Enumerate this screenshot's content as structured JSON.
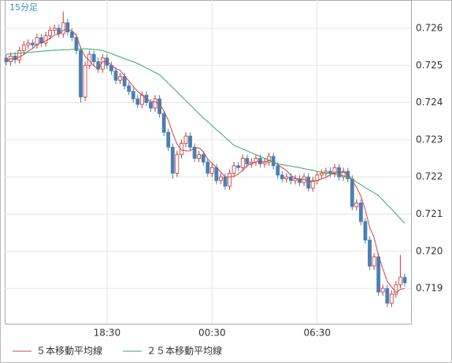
{
  "chart_data": {
    "type": "candlestick",
    "title": "15分足",
    "categories": [
      null,
      null,
      null,
      null,
      null,
      null,
      null,
      null,
      null,
      null,
      null,
      null,
      null,
      null,
      null,
      null,
      null,
      null,
      null,
      null,
      null,
      null,
      null,
      "18:30",
      null,
      null,
      null,
      null,
      null,
      null,
      null,
      null,
      null,
      null,
      null,
      null,
      null,
      null,
      null,
      null,
      null,
      null,
      null,
      null,
      null,
      null,
      null,
      "00:30",
      null,
      null,
      null,
      null,
      null,
      null,
      null,
      null,
      null,
      null,
      null,
      null,
      null,
      null,
      null,
      null,
      null,
      null,
      null,
      null,
      null,
      null,
      null,
      "06:30",
      null,
      null,
      null,
      null,
      null,
      null,
      null,
      null,
      null,
      null,
      null,
      null,
      null,
      null,
      null,
      null,
      null,
      null,
      null,
      null
    ],
    "open": [
      0.7252,
      0.7251,
      0.72525,
      0.72515,
      0.7254,
      0.72555,
      0.7256,
      0.72555,
      0.72575,
      0.7256,
      0.7258,
      0.72595,
      0.726,
      0.72585,
      0.72615,
      0.7259,
      0.72575,
      0.7254,
      0.72415,
      0.725,
      0.7253,
      0.7251,
      0.7249,
      0.7252,
      0.725,
      0.72485,
      0.7246,
      0.7247,
      0.72445,
      0.7243,
      0.7241,
      0.72395,
      0.7242,
      0.724,
      0.72385,
      0.7241,
      0.7237,
      0.7232,
      0.7228,
      0.7221,
      0.7226,
      0.7229,
      0.7231,
      0.7228,
      0.7225,
      0.7226,
      0.7224,
      0.7221,
      0.72225,
      0.7219,
      0.722,
      0.72175,
      0.7221,
      0.7223,
      0.72225,
      0.7225,
      0.72235,
      0.7224,
      0.7225,
      0.72235,
      0.7224,
      0.72255,
      0.7223,
      0.72205,
      0.72195,
      0.722,
      0.7219,
      0.72195,
      0.72185,
      0.722,
      0.7217,
      0.7219,
      0.72205,
      0.7221,
      0.72215,
      0.7221,
      0.72225,
      0.722,
      0.72215,
      0.72195,
      0.7212,
      0.7213,
      0.7208,
      0.7203,
      0.7196,
      0.71985,
      0.7189,
      0.719,
      0.7186,
      0.71885,
      0.7191,
      0.7193
    ],
    "high": [
      0.7253,
      0.72535,
      0.72535,
      0.7255,
      0.72565,
      0.7257,
      0.7257,
      0.72585,
      0.72585,
      0.7259,
      0.72605,
      0.7261,
      0.7261,
      0.72645,
      0.72625,
      0.726,
      0.72585,
      0.7255,
      0.7251,
      0.7254,
      0.7254,
      0.7252,
      0.7253,
      0.7253,
      0.7251,
      0.72495,
      0.7248,
      0.7248,
      0.72455,
      0.7244,
      0.7242,
      0.7243,
      0.7243,
      0.7241,
      0.7242,
      0.7242,
      0.7238,
      0.7233,
      0.7229,
      0.7227,
      0.723,
      0.7232,
      0.7232,
      0.7229,
      0.7227,
      0.7227,
      0.7225,
      0.72235,
      0.72235,
      0.7221,
      0.7221,
      0.7222,
      0.7224,
      0.7224,
      0.7226,
      0.7226,
      0.7225,
      0.7226,
      0.7226,
      0.7225,
      0.72265,
      0.72265,
      0.7224,
      0.72215,
      0.7221,
      0.7221,
      0.72205,
      0.72205,
      0.7221,
      0.7221,
      0.722,
      0.72215,
      0.7222,
      0.72225,
      0.72225,
      0.72235,
      0.72235,
      0.72225,
      0.72225,
      0.72205,
      0.7214,
      0.7214,
      0.7209,
      0.7204,
      0.71995,
      0.71995,
      0.7191,
      0.7191,
      0.71895,
      0.7192,
      0.7199,
      0.7194
    ],
    "low": [
      0.725,
      0.725,
      0.72505,
      0.72505,
      0.7253,
      0.72545,
      0.72545,
      0.72545,
      0.7255,
      0.7255,
      0.7257,
      0.72585,
      0.72575,
      0.72575,
      0.7258,
      0.72565,
      0.7253,
      0.724,
      0.72405,
      0.7249,
      0.725,
      0.7248,
      0.7248,
      0.7249,
      0.72475,
      0.7245,
      0.7245,
      0.72435,
      0.7242,
      0.724,
      0.72385,
      0.72385,
      0.7239,
      0.72375,
      0.72375,
      0.7236,
      0.7231,
      0.7227,
      0.72195,
      0.722,
      0.7225,
      0.7228,
      0.7227,
      0.7224,
      0.7224,
      0.7223,
      0.722,
      0.722,
      0.7218,
      0.7218,
      0.72165,
      0.72165,
      0.722,
      0.72215,
      0.72215,
      0.72225,
      0.72225,
      0.7223,
      0.72225,
      0.72225,
      0.7223,
      0.7222,
      0.72195,
      0.72185,
      0.72185,
      0.7218,
      0.7218,
      0.72175,
      0.72175,
      0.7216,
      0.7216,
      0.7218,
      0.72195,
      0.722,
      0.722,
      0.722,
      0.7219,
      0.7219,
      0.72185,
      0.7211,
      0.7211,
      0.7207,
      0.7202,
      0.7195,
      0.7195,
      0.7188,
      0.7188,
      0.7185,
      0.7185,
      0.71875,
      0.719,
      0.71905
    ],
    "close": [
      0.7251,
      0.72525,
      0.72515,
      0.7254,
      0.72555,
      0.7256,
      0.72555,
      0.72575,
      0.7256,
      0.7258,
      0.72595,
      0.726,
      0.72585,
      0.72615,
      0.7259,
      0.72575,
      0.7254,
      0.72415,
      0.725,
      0.7253,
      0.7251,
      0.7249,
      0.7252,
      0.725,
      0.72485,
      0.7246,
      0.7247,
      0.72445,
      0.7243,
      0.7241,
      0.72395,
      0.7242,
      0.724,
      0.72385,
      0.7241,
      0.7237,
      0.7232,
      0.7228,
      0.7221,
      0.7226,
      0.7229,
      0.7231,
      0.7228,
      0.7225,
      0.7226,
      0.7224,
      0.7221,
      0.72225,
      0.7219,
      0.722,
      0.72175,
      0.7221,
      0.7223,
      0.72225,
      0.7225,
      0.72235,
      0.7224,
      0.7225,
      0.72235,
      0.7224,
      0.72255,
      0.7223,
      0.72205,
      0.72195,
      0.722,
      0.7219,
      0.72195,
      0.72185,
      0.722,
      0.7217,
      0.7219,
      0.72205,
      0.7221,
      0.72215,
      0.7221,
      0.72225,
      0.722,
      0.72215,
      0.72195,
      0.7212,
      0.7213,
      0.7208,
      0.7203,
      0.7196,
      0.71985,
      0.7189,
      0.719,
      0.7186,
      0.71885,
      0.7191,
      0.7193,
      0.71915
    ],
    "up_color": "#cc3333",
    "down_color": "#4a7fb5",
    "series": [
      {
        "name": "５本移動平均線",
        "color": "#cc4444",
        "values": [
          0.7251,
          0.72518,
          0.72517,
          0.72523,
          0.72529,
          0.72539,
          0.72545,
          0.72557,
          0.72561,
          0.72566,
          0.72573,
          0.72582,
          0.72584,
          0.72595,
          0.72597,
          0.72593,
          0.72581,
          0.72547,
          0.72524,
          0.72512,
          0.72499,
          0.72489,
          0.7251,
          0.7251,
          0.72501,
          0.72491,
          0.72487,
          0.72472,
          0.72458,
          0.72443,
          0.7243,
          0.7242,
          0.72411,
          0.72402,
          0.72402,
          0.72397,
          0.72377,
          0.72353,
          0.72318,
          0.72288,
          0.72272,
          0.7227,
          0.7227,
          0.72278,
          0.72278,
          0.72268,
          0.72248,
          0.72237,
          0.72225,
          0.72213,
          0.722,
          0.722,
          0.72201,
          0.72208,
          0.72218,
          0.7223,
          0.72236,
          0.7224,
          0.72242,
          0.7224,
          0.72244,
          0.72242,
          0.72233,
          0.72225,
          0.72217,
          0.72204,
          0.72197,
          0.72193,
          0.72194,
          0.72188,
          0.72188,
          0.7219,
          0.72195,
          0.72198,
          0.72206,
          0.72213,
          0.72212,
          0.72213,
          0.72209,
          0.72191,
          0.72172,
          0.72148,
          0.72111,
          0.72064,
          0.72037,
          0.71989,
          0.71953,
          0.71919,
          0.71904,
          0.71889,
          0.71897,
          0.719
        ]
      },
      {
        "name": "２５本移動平均線",
        "color": "#33aa66",
        "values": [
          0.7253,
          0.72531,
          0.72532,
          0.72533,
          0.72534,
          0.72535,
          0.72536,
          0.72537,
          0.72538,
          0.72539,
          0.7254,
          0.72541,
          0.72541,
          0.72542,
          0.72542,
          0.72543,
          0.72544,
          0.72544,
          0.72545,
          0.72544,
          0.72543,
          0.72542,
          0.7254,
          0.72536,
          0.72532,
          0.72527,
          0.72523,
          0.72518,
          0.72514,
          0.7251,
          0.72505,
          0.72499,
          0.72493,
          0.72487,
          0.72481,
          0.72475,
          0.72463,
          0.72452,
          0.7244,
          0.72429,
          0.72417,
          0.72405,
          0.72394,
          0.72382,
          0.7237,
          0.72359,
          0.72349,
          0.72338,
          0.72327,
          0.72317,
          0.72306,
          0.72296,
          0.72285,
          0.7228,
          0.72275,
          0.7227,
          0.72265,
          0.7226,
          0.72255,
          0.7225,
          0.72245,
          0.7224,
          0.72235,
          0.72233,
          0.72231,
          0.72229,
          0.72227,
          0.72225,
          0.72222,
          0.7222,
          0.72218,
          0.72215,
          0.72213,
          0.72211,
          0.72209,
          0.72207,
          0.72205,
          0.72203,
          0.722,
          0.72193,
          0.72186,
          0.72179,
          0.72171,
          0.72164,
          0.72157,
          0.7215,
          0.72138,
          0.72125,
          0.72113,
          0.721,
          0.72088,
          0.72075
        ]
      }
    ],
    "ylim": [
      0.71805,
      0.72676
    ],
    "yticks": [
      0.719,
      {
        "value": 0.72,
        "label": "0.720"
      },
      0.721,
      0.722,
      0.723,
      0.724,
      0.725,
      0.726
    ],
    "grid": true
  }
}
